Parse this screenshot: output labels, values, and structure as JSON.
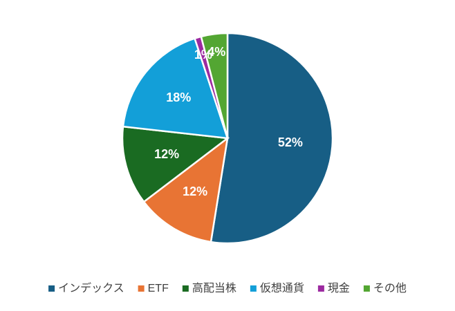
{
  "chart_data": {
    "type": "pie",
    "categories": [
      "インデックス",
      "ETF",
      "高配当株",
      "仮想通貨",
      "現金",
      "その他"
    ],
    "values": [
      52,
      12,
      12,
      18,
      1,
      4
    ],
    "value_labels": [
      "52%",
      "12%",
      "12%",
      "18%",
      "1%",
      "4%"
    ],
    "colors": [
      "#175e85",
      "#e87434",
      "#1a6b22",
      "#139fd8",
      "#9c2aa0",
      "#53a632"
    ],
    "legend": "bottom"
  }
}
